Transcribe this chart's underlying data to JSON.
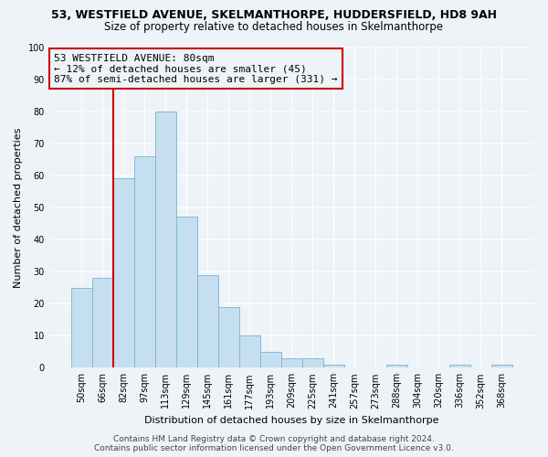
{
  "title": "53, WESTFIELD AVENUE, SKELMANTHORPE, HUDDERSFIELD, HD8 9AH",
  "subtitle": "Size of property relative to detached houses in Skelmanthorpe",
  "xlabel": "Distribution of detached houses by size in Skelmanthorpe",
  "ylabel": "Number of detached properties",
  "bin_labels": [
    "50sqm",
    "66sqm",
    "82sqm",
    "97sqm",
    "113sqm",
    "129sqm",
    "145sqm",
    "161sqm",
    "177sqm",
    "193sqm",
    "209sqm",
    "225sqm",
    "241sqm",
    "257sqm",
    "273sqm",
    "288sqm",
    "304sqm",
    "320sqm",
    "336sqm",
    "352sqm",
    "368sqm"
  ],
  "bar_heights": [
    25,
    28,
    59,
    66,
    80,
    47,
    29,
    19,
    10,
    5,
    3,
    3,
    1,
    0,
    0,
    1,
    0,
    0,
    1,
    0,
    1
  ],
  "bar_color": "#c6dff0",
  "bar_edge_color": "#7ab3cc",
  "highlight_line_index": 2,
  "highlight_color": "#cc0000",
  "annotation_text": "53 WESTFIELD AVENUE: 80sqm\n← 12% of detached houses are smaller (45)\n87% of semi-detached houses are larger (331) →",
  "annotation_box_edgecolor": "#cc0000",
  "ylim": [
    0,
    100
  ],
  "yticks": [
    0,
    10,
    20,
    30,
    40,
    50,
    60,
    70,
    80,
    90,
    100
  ],
  "footer_line1": "Contains HM Land Registry data © Crown copyright and database right 2024.",
  "footer_line2": "Contains public sector information licensed under the Open Government Licence v3.0.",
  "bg_color": "#eef3f8",
  "plot_bg_color": "#eef3f8",
  "grid_color": "#ffffff",
  "title_fontsize": 9,
  "subtitle_fontsize": 8.5,
  "axis_label_fontsize": 8,
  "tick_fontsize": 7,
  "annotation_fontsize": 8,
  "footer_fontsize": 6.5
}
